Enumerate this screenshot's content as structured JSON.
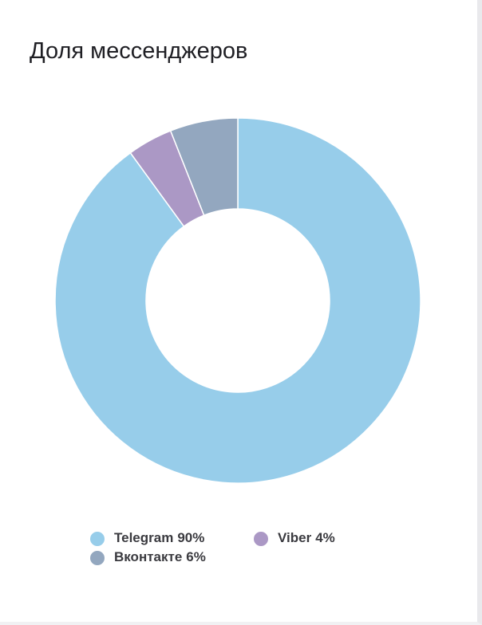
{
  "chart_data": {
    "type": "donut",
    "title": "Доля мессенджеров",
    "categories": [
      "Telegram",
      "Viber",
      "Вконтакте"
    ],
    "values": [
      90,
      4,
      6
    ],
    "value_labels": [
      "90%",
      "4%",
      "6%"
    ],
    "colors": [
      "#97cdea",
      "#ab98c5",
      "#93a7bf"
    ]
  }
}
